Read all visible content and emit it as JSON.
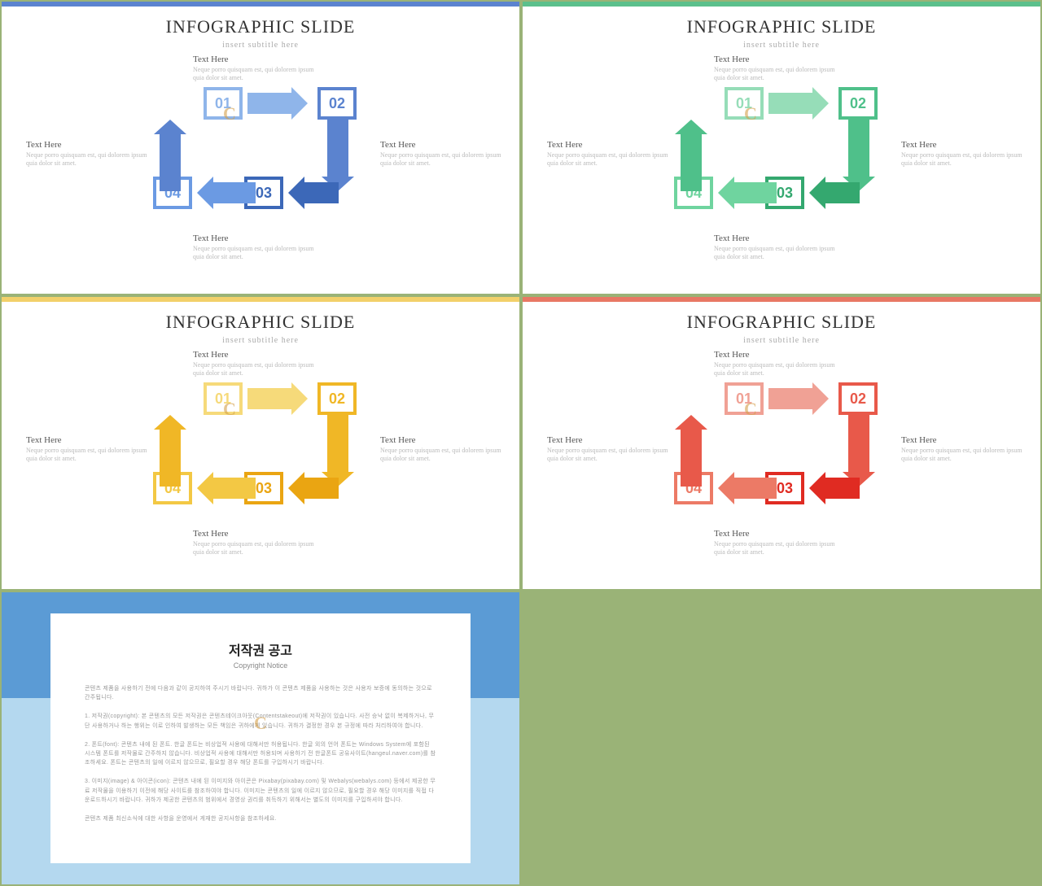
{
  "title": "INFOGRAPHIC SLIDE",
  "subtitle": "insert subtitle here",
  "text_here": "Text Here",
  "lorem": "Neque porro quisquam est, qui dolorem ipsum quia dolor sit amet.",
  "watermark": "C",
  "numbers": {
    "n01": "01",
    "n02": "02",
    "n03": "03",
    "n04": "04"
  },
  "slides": [
    {
      "topbar": "#5b83cf",
      "c_light": "#8fb5ea",
      "c_mid": "#6b9ae3",
      "c_main": "#5b83cf",
      "c_dark": "#3c68b8",
      "box_colors": [
        "#8fb5ea",
        "#5b83cf",
        "#3c68b8",
        "#6b9ae3"
      ]
    },
    {
      "topbar": "#5bc08c",
      "c_light": "#96ddb8",
      "c_mid": "#6fd49f",
      "c_main": "#4fc08a",
      "c_dark": "#34a86f",
      "box_colors": [
        "#96ddb8",
        "#4fc08a",
        "#34a86f",
        "#6fd49f"
      ]
    },
    {
      "topbar": "#f2d06a",
      "c_light": "#f6da7a",
      "c_mid": "#f3c844",
      "c_main": "#f0b726",
      "c_dark": "#eaa512",
      "box_colors": [
        "#f6da7a",
        "#f0b726",
        "#eaa512",
        "#f3c844"
      ]
    },
    {
      "topbar": "#e87864",
      "c_light": "#f0a195",
      "c_mid": "#ec7a66",
      "c_main": "#e8594a",
      "c_dark": "#e02b22",
      "box_colors": [
        "#f0a195",
        "#e8594a",
        "#e02b22",
        "#ec7a66"
      ]
    }
  ],
  "copyright": {
    "title": "저작권 공고",
    "subtitle": "Copyright Notice",
    "p1": "콘텐츠 제품을 사용하기 전에 다음과 같이 공지하여 주시기 바랍니다. 귀하가 이 콘텐츠 제품을 사용하는 것은 사용자 보증에 동의하는 것으로 간주됩니다.",
    "p2": "1. 저작권(copyright): 본 콘텐츠의 모든 저작권은 콘텐츠테이크아웃(Contentstakeout)에 저작권이 있습니다. 사전 승낙 없이 복제하거나, 무단 사용하거나 하는 행위는 이로 인하여 발생하는 모든 책임은 귀하에게 있습니다. 귀하가 결정한 경우 본 규정에 따라 처리하여야 합니다.",
    "p3": "2. 폰트(font): 콘텐츠 내에 된 폰트. 한글 폰트는 비상업적 사용에 대해서만 허용됩니다. 한글 외의 언어 폰트는 Windows System에 포함된 시스템 폰트를 저작물로 간주하지 않습니다. 비상업적 사용에 대해서만 허용되며 사용하기 전 한글폰트 공유사이트(hangeul.naver.com)를 참조하세요. 폰트는 콘텐츠의 일에 이르지 않으므로, 필요할 경우 해당 폰트를 구입하시기 바랍니다.",
    "p4": "3. 이미지(image) & 아이콘(icon): 콘텐츠 내에 된 이미지와 아이콘은 Pixabay(pixabay.com) 및 Webalys(webalys.com) 등에서 제공한 무료 저작물을 이용하기 이전에 해당 사이트를 참조하여야 합니다. 이미지는 콘텐츠의 일에 이르지 않으므로, 필요할 경우 해당 이미지를 직접 다운로드하시기 바랍니다. 귀하가 제공한 콘텐츠의 범위에서 경영상 권리를 취득하기 위해서는 별도의 이미지를 구입하셔야 합니다.",
    "p5": "콘텐츠 제품 최신소식에 대한 사항을 운영에서 게재한 공지사항을 참조하세요."
  }
}
